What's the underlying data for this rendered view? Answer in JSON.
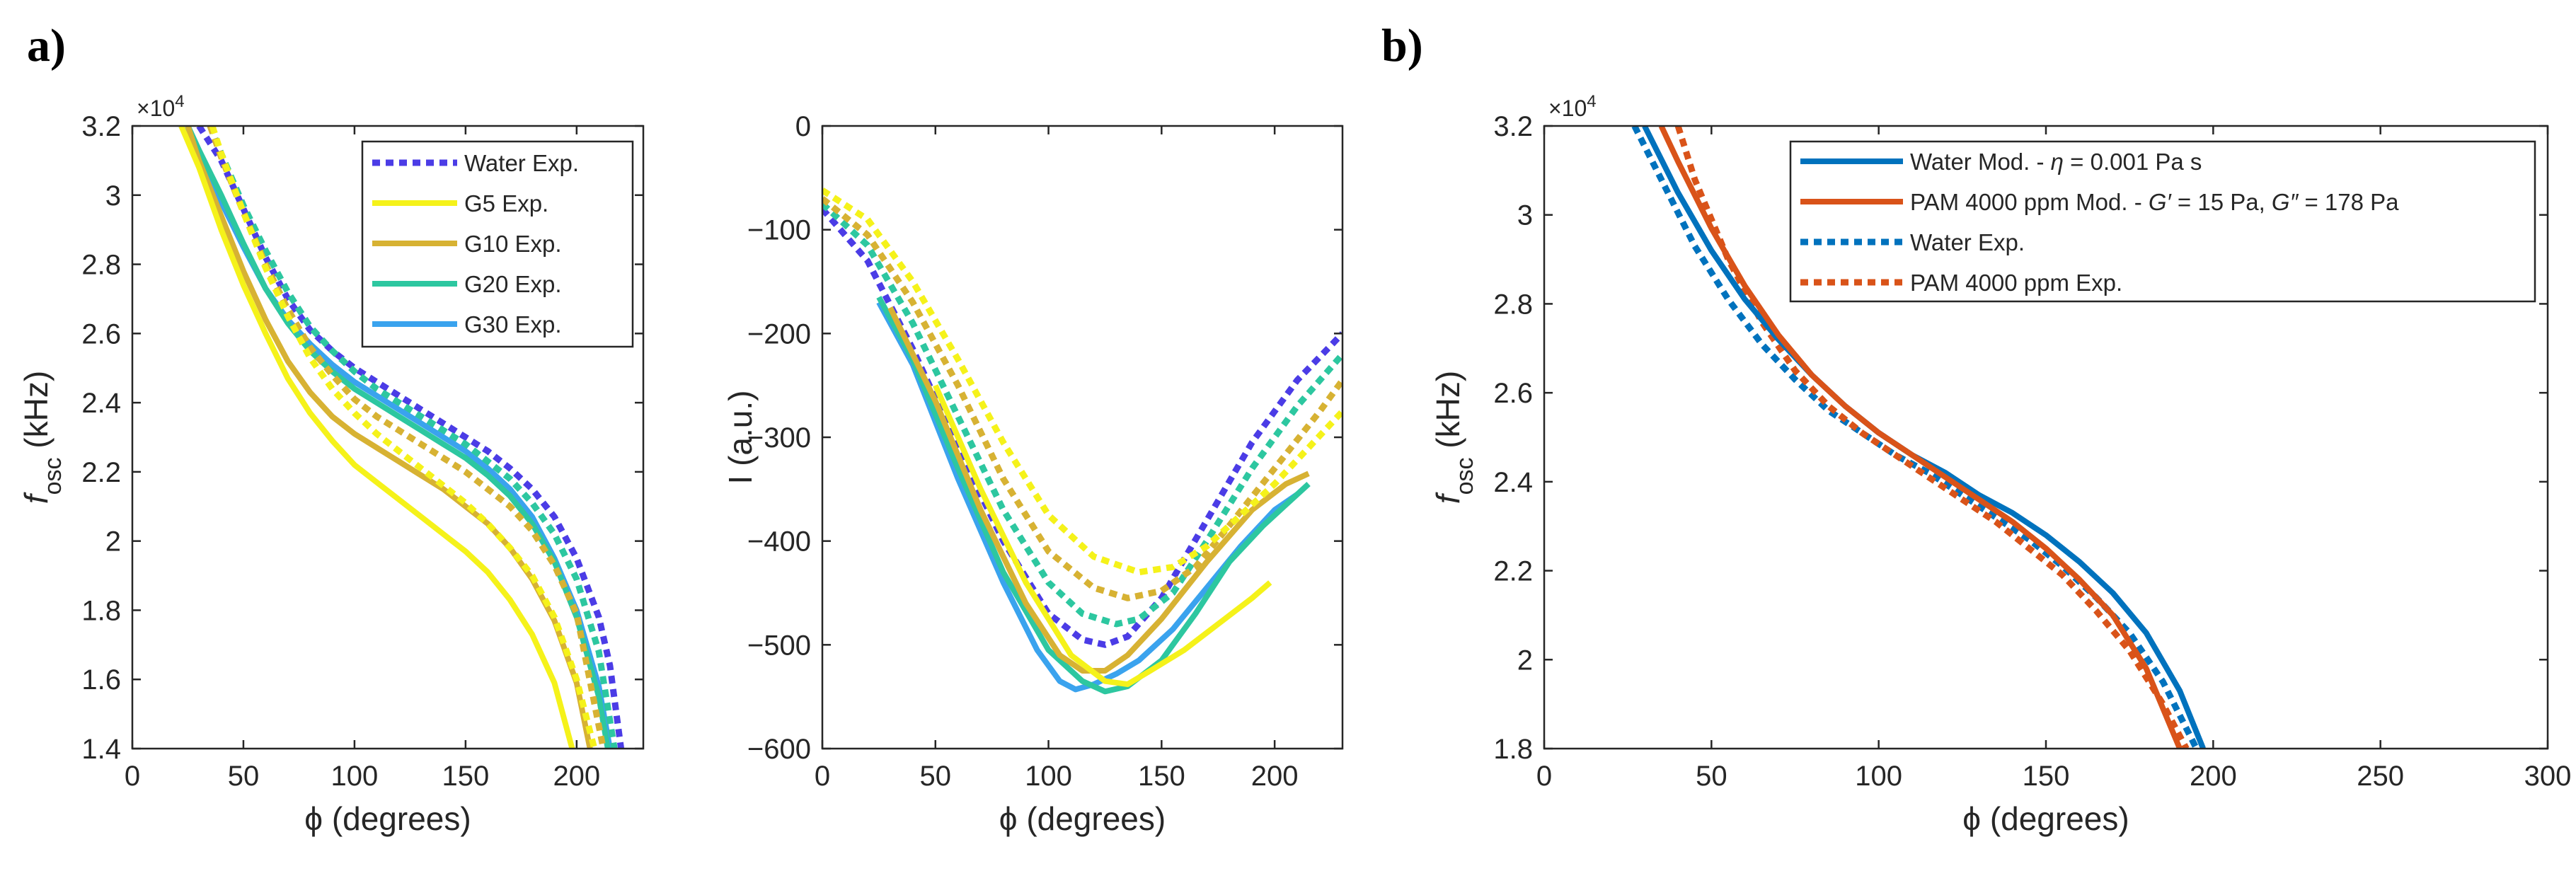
{
  "figure": {
    "panel_a_label": "a)",
    "panel_b_label": "b)"
  },
  "chart_data": [
    {
      "id": "a1",
      "type": "line",
      "title": "",
      "xlabel": "ϕ (degrees)",
      "ylabel_main": "f",
      "ylabel_sub": "osc",
      "ylabel_unit": " (kHz)",
      "exponent_label": "×10",
      "exponent_power": "4",
      "xlim": [
        0,
        230
      ],
      "ylim": [
        1.4,
        3.2
      ],
      "xticks": [
        0,
        50,
        100,
        150,
        200
      ],
      "yticks": [
        1.4,
        1.6,
        1.8,
        2,
        2.2,
        2.4,
        2.6,
        2.8,
        3,
        3.2
      ],
      "yticklabels": [
        "1.4",
        "1.6",
        "1.8",
        "2",
        "2.2",
        "2.4",
        "2.6",
        "2.8",
        "3",
        "3.2"
      ],
      "grid": false,
      "legend": "top-right",
      "legend_entries": [
        {
          "label": "Water Exp.",
          "color": "#4B3CE6",
          "style": "dashed"
        },
        {
          "label": "G5 Exp.",
          "color": "#F5F21A",
          "style": "solid"
        },
        {
          "label": "G10 Exp.",
          "color": "#D7B233",
          "style": "solid"
        },
        {
          "label": "G20 Exp.",
          "color": "#2DC7A0",
          "style": "solid"
        },
        {
          "label": "G30 Exp.",
          "color": "#3AA3EE",
          "style": "solid"
        }
      ],
      "series": [
        {
          "name": "Water Exp.",
          "color": "#4B3CE6",
          "style": "dashed",
          "x": [
            30,
            40,
            50,
            60,
            70,
            80,
            90,
            100,
            110,
            120,
            130,
            140,
            150,
            160,
            170,
            180,
            190,
            200,
            210,
            215,
            220
          ],
          "y": [
            3.2,
            3.1,
            2.96,
            2.82,
            2.7,
            2.61,
            2.55,
            2.5,
            2.46,
            2.42,
            2.38,
            2.34,
            2.3,
            2.26,
            2.21,
            2.15,
            2.07,
            1.95,
            1.78,
            1.64,
            1.4
          ]
        },
        {
          "name": "G30 Exp.",
          "color": "#3AA3EE",
          "style": "solid",
          "x": [
            22,
            30,
            40,
            50,
            60,
            70,
            80,
            90,
            100,
            110,
            120,
            130,
            140,
            150,
            160,
            170,
            180,
            190,
            200,
            210,
            215
          ],
          "y": [
            3.2,
            3.1,
            2.98,
            2.85,
            2.73,
            2.64,
            2.57,
            2.51,
            2.46,
            2.42,
            2.38,
            2.34,
            2.3,
            2.26,
            2.21,
            2.15,
            2.07,
            1.95,
            1.8,
            1.58,
            1.4
          ]
        },
        {
          "name": "G20 Exp.",
          "color": "#2DC7A0",
          "style": "solid",
          "x": [
            25,
            30,
            40,
            50,
            60,
            70,
            80,
            90,
            100,
            110,
            120,
            130,
            140,
            150,
            160,
            170,
            180,
            190,
            200,
            210,
            214
          ],
          "y": [
            3.2,
            3.13,
            3.0,
            2.86,
            2.73,
            2.63,
            2.55,
            2.49,
            2.44,
            2.4,
            2.36,
            2.32,
            2.28,
            2.24,
            2.19,
            2.13,
            2.05,
            1.94,
            1.78,
            1.55,
            1.4
          ]
        },
        {
          "name": "G10 Exp.",
          "color": "#D7B233",
          "style": "solid",
          "x": [
            25,
            30,
            40,
            50,
            60,
            70,
            80,
            90,
            100,
            110,
            120,
            130,
            140,
            150,
            160,
            170,
            180,
            190,
            200,
            206
          ],
          "y": [
            3.2,
            3.1,
            2.94,
            2.78,
            2.64,
            2.52,
            2.43,
            2.36,
            2.31,
            2.27,
            2.23,
            2.19,
            2.15,
            2.1,
            2.05,
            1.98,
            1.89,
            1.77,
            1.59,
            1.4
          ]
        },
        {
          "name": "G5 Exp.",
          "color": "#F5F21A",
          "style": "solid",
          "x": [
            22,
            30,
            40,
            50,
            60,
            70,
            80,
            90,
            100,
            110,
            120,
            130,
            140,
            150,
            160,
            170,
            180,
            190,
            198
          ],
          "y": [
            3.2,
            3.08,
            2.9,
            2.74,
            2.6,
            2.47,
            2.37,
            2.29,
            2.22,
            2.17,
            2.12,
            2.07,
            2.02,
            1.97,
            1.91,
            1.83,
            1.73,
            1.59,
            1.4
          ]
        },
        {
          "name": "G20 Exp. dashed",
          "color": "#2DC7A0",
          "style": "dashed",
          "x": [
            35,
            40,
            50,
            60,
            70,
            80,
            90,
            100,
            110,
            120,
            130,
            140,
            150,
            160,
            170,
            180,
            190,
            200,
            210,
            217
          ],
          "y": [
            3.2,
            3.12,
            2.97,
            2.84,
            2.72,
            2.62,
            2.55,
            2.49,
            2.44,
            2.4,
            2.36,
            2.32,
            2.28,
            2.23,
            2.18,
            2.11,
            2.02,
            1.89,
            1.68,
            1.4
          ]
        },
        {
          "name": "G10 Exp. dashed",
          "color": "#D7B233",
          "style": "dashed",
          "x": [
            35,
            40,
            50,
            60,
            70,
            80,
            90,
            100,
            110,
            120,
            130,
            140,
            150,
            160,
            170,
            180,
            190,
            200,
            212
          ],
          "y": [
            3.2,
            3.11,
            2.95,
            2.8,
            2.67,
            2.56,
            2.48,
            2.41,
            2.36,
            2.32,
            2.28,
            2.24,
            2.2,
            2.15,
            2.1,
            2.03,
            1.93,
            1.79,
            1.4
          ]
        },
        {
          "name": "G5 Exp. dashed",
          "color": "#F5F21A",
          "style": "dashed",
          "x": [
            36,
            40,
            50,
            60,
            70,
            80,
            90,
            100,
            110,
            120,
            130,
            140,
            150,
            160,
            170,
            180,
            190,
            200,
            208
          ],
          "y": [
            3.2,
            3.12,
            2.95,
            2.79,
            2.65,
            2.53,
            2.44,
            2.37,
            2.31,
            2.26,
            2.21,
            2.16,
            2.11,
            2.05,
            1.98,
            1.9,
            1.78,
            1.6,
            1.4
          ]
        }
      ]
    },
    {
      "id": "a2",
      "type": "line",
      "title": "",
      "xlabel": "ϕ (degrees)",
      "ylabel": "I (a.u.)",
      "xlim": [
        0,
        230
      ],
      "ylim": [
        -600,
        0
      ],
      "xticks": [
        0,
        50,
        100,
        150,
        200
      ],
      "yticks": [
        -600,
        -500,
        -400,
        -300,
        -200,
        -100,
        0
      ],
      "yticklabels": [
        "−600",
        "−500",
        "−400",
        "−300",
        "−200",
        "−100",
        "0"
      ],
      "grid": false,
      "series": [
        {
          "name": "Water Exp.",
          "color": "#4B3CE6",
          "style": "dashed",
          "x": [
            0,
            20,
            40,
            60,
            80,
            100,
            115,
            125,
            135,
            150,
            170,
            190,
            210,
            230
          ],
          "y": [
            -80,
            -130,
            -215,
            -310,
            -400,
            -470,
            -495,
            -500,
            -492,
            -455,
            -380,
            -305,
            -245,
            -200
          ]
        },
        {
          "name": "G30 Exp.",
          "color": "#3AA3EE",
          "style": "solid",
          "x": [
            25,
            40,
            60,
            80,
            95,
            105,
            112,
            120,
            130,
            140,
            155,
            170,
            185,
            200,
            210
          ],
          "y": [
            -170,
            -230,
            -340,
            -440,
            -505,
            -535,
            -543,
            -538,
            -528,
            -515,
            -485,
            -445,
            -405,
            -370,
            -355
          ]
        },
        {
          "name": "G20 Exp.",
          "color": "#2DC7A0",
          "style": "solid",
          "x": [
            25,
            40,
            60,
            80,
            100,
            115,
            125,
            135,
            150,
            165,
            180,
            195,
            205,
            215
          ],
          "y": [
            -165,
            -225,
            -330,
            -430,
            -505,
            -535,
            -545,
            -540,
            -515,
            -470,
            -420,
            -385,
            -365,
            -345
          ]
        },
        {
          "name": "G10 Exp.",
          "color": "#D7B233",
          "style": "solid",
          "x": [
            30,
            50,
            70,
            90,
            105,
            115,
            125,
            135,
            150,
            170,
            190,
            205,
            215
          ],
          "y": [
            -175,
            -265,
            -370,
            -460,
            -510,
            -525,
            -525,
            -510,
            -475,
            -420,
            -370,
            -345,
            -335
          ]
        },
        {
          "name": "G5 Exp.",
          "color": "#F5F21A",
          "style": "solid",
          "x": [
            50,
            70,
            90,
            110,
            125,
            135,
            145,
            160,
            175,
            190,
            198
          ],
          "y": [
            -250,
            -350,
            -440,
            -510,
            -535,
            -538,
            -525,
            -505,
            -480,
            -455,
            -440
          ]
        },
        {
          "name": "G20 Exp. dashed",
          "color": "#2DC7A0",
          "style": "dashed",
          "x": [
            0,
            20,
            40,
            60,
            80,
            100,
            115,
            130,
            140,
            155,
            170,
            190,
            210,
            230
          ],
          "y": [
            -75,
            -115,
            -190,
            -280,
            -370,
            -440,
            -470,
            -480,
            -475,
            -450,
            -400,
            -330,
            -270,
            -220
          ]
        },
        {
          "name": "G10 Exp. dashed",
          "color": "#D7B233",
          "style": "dashed",
          "x": [
            0,
            20,
            40,
            60,
            80,
            100,
            120,
            135,
            150,
            165,
            180,
            200,
            220,
            230
          ],
          "y": [
            -70,
            -105,
            -170,
            -250,
            -340,
            -410,
            -445,
            -455,
            -448,
            -425,
            -385,
            -330,
            -275,
            -245
          ]
        },
        {
          "name": "G5 Exp. dashed",
          "color": "#F5F21A",
          "style": "dashed",
          "x": [
            0,
            20,
            40,
            60,
            80,
            100,
            120,
            140,
            155,
            170,
            185,
            200,
            215,
            230
          ],
          "y": [
            -62,
            -90,
            -150,
            -225,
            -305,
            -375,
            -415,
            -430,
            -425,
            -405,
            -375,
            -345,
            -310,
            -275
          ]
        }
      ]
    },
    {
      "id": "b",
      "type": "line",
      "title": "",
      "xlabel": "ϕ (degrees)",
      "ylabel_main": "f",
      "ylabel_sub": "osc",
      "ylabel_unit": " (kHz)",
      "exponent_label": "×10",
      "exponent_power": "4",
      "xlim": [
        0,
        300
      ],
      "ylim": [
        1.8,
        3.2
      ],
      "xticks": [
        0,
        50,
        100,
        150,
        200,
        250,
        300
      ],
      "yticks": [
        1.8,
        2,
        2.2,
        2.4,
        2.6,
        2.8,
        3,
        3.2
      ],
      "yticklabels": [
        "1.8",
        "2",
        "2.2",
        "2.4",
        "2.6",
        "2.8",
        "3",
        "3.2"
      ],
      "grid": false,
      "legend": "top-right",
      "legend_entries": [
        {
          "prefix": "Water Mod. - ",
          "sym": "η",
          "suffix": " = 0.001 Pa s",
          "color": "#0072BD",
          "style": "solid"
        },
        {
          "prefix": "PAM 4000 ppm Mod. - ",
          "sym": "G′",
          "suffix": " = 15 Pa, ",
          "sym2": "G″",
          "suffix2": " = 178 Pa",
          "color": "#D95319",
          "style": "solid"
        },
        {
          "prefix": "Water Exp.",
          "color": "#0072BD",
          "style": "dashed"
        },
        {
          "prefix": "PAM 4000 ppm Exp.",
          "color": "#D95319",
          "style": "dashed"
        }
      ],
      "series": [
        {
          "name": "Water Exp.",
          "color": "#0072BD",
          "style": "dashed",
          "x": [
            27,
            35,
            45,
            55,
            65,
            75,
            85,
            95,
            105,
            115,
            125,
            135,
            145,
            155,
            165,
            175,
            185,
            195
          ],
          "y": [
            3.2,
            3.08,
            2.93,
            2.81,
            2.71,
            2.63,
            2.56,
            2.51,
            2.46,
            2.42,
            2.37,
            2.32,
            2.27,
            2.21,
            2.14,
            2.06,
            1.95,
            1.8
          ]
        },
        {
          "name": "PAM 4000 ppm Exp.",
          "color": "#D95319",
          "style": "dashed",
          "x": [
            40,
            45,
            55,
            65,
            75,
            85,
            95,
            105,
            115,
            125,
            135,
            145,
            155,
            165,
            175,
            185,
            192
          ],
          "y": [
            3.2,
            3.08,
            2.9,
            2.76,
            2.65,
            2.57,
            2.51,
            2.46,
            2.41,
            2.36,
            2.31,
            2.25,
            2.19,
            2.11,
            2.02,
            1.9,
            1.8
          ]
        },
        {
          "name": "Water Mod.",
          "color": "#0072BD",
          "style": "solid",
          "x": [
            30,
            40,
            50,
            60,
            70,
            80,
            90,
            100,
            110,
            120,
            130,
            140,
            150,
            160,
            170,
            180,
            190,
            197
          ],
          "y": [
            3.2,
            3.05,
            2.92,
            2.81,
            2.72,
            2.64,
            2.57,
            2.51,
            2.46,
            2.42,
            2.37,
            2.33,
            2.28,
            2.22,
            2.15,
            2.06,
            1.93,
            1.8
          ]
        },
        {
          "name": "PAM 4000 ppm Mod.",
          "color": "#D95319",
          "style": "solid",
          "x": [
            35,
            40,
            50,
            60,
            70,
            80,
            90,
            100,
            110,
            120,
            130,
            140,
            150,
            160,
            170,
            180,
            190
          ],
          "y": [
            3.2,
            3.12,
            2.97,
            2.84,
            2.73,
            2.64,
            2.57,
            2.51,
            2.46,
            2.41,
            2.36,
            2.31,
            2.25,
            2.18,
            2.1,
            1.98,
            1.8
          ]
        }
      ]
    }
  ]
}
